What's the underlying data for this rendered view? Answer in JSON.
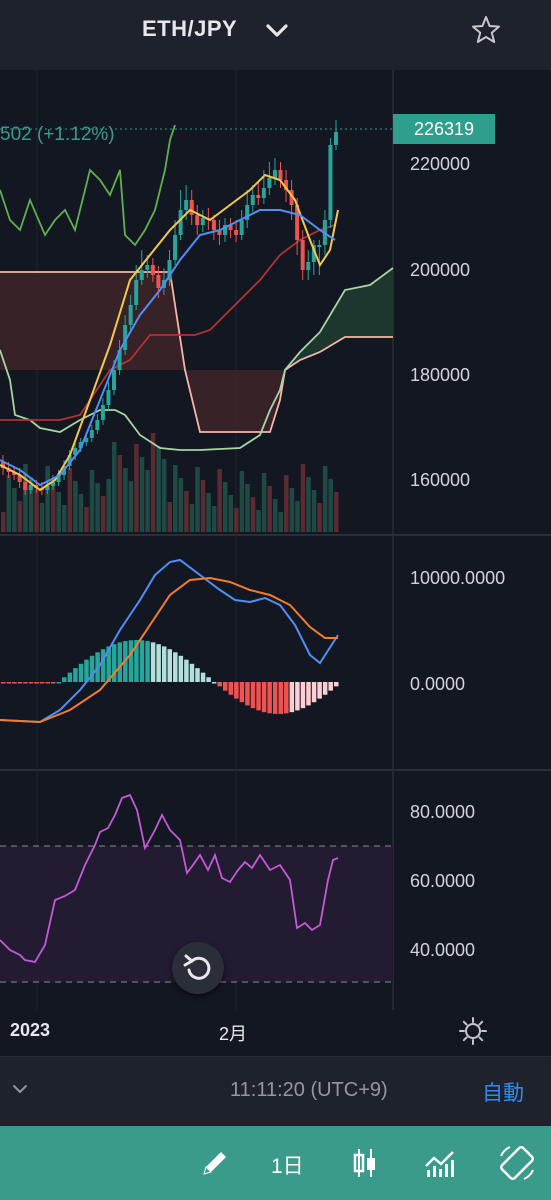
{
  "header": {
    "title": "ETH/JPY",
    "dropdown_icon": "chevron-down-icon",
    "favorite_icon": "star-icon"
  },
  "price": {
    "last": "226319",
    "change_partial": "502 (+1.12%)",
    "axis_ticks": [
      "220000",
      "200000",
      "180000",
      "160000"
    ],
    "badge_color": "#2f9e8c"
  },
  "macd": {
    "axis_ticks": [
      "10000.0000",
      "0.0000"
    ],
    "macd_color": "#4f8ff7",
    "signal_color": "#f57c2b"
  },
  "rsi": {
    "axis_ticks": [
      "80.0000",
      "60.0000",
      "40.0000"
    ],
    "line_color": "#c45bd6"
  },
  "time_axis": {
    "labels": [
      "2023",
      "2月"
    ]
  },
  "status_bar": {
    "time": "11:11:20 (UTC+9)",
    "scale_mode": "自動"
  },
  "toolbar": {
    "timeframe": "1日"
  },
  "colors": {
    "up": "#26a69a",
    "down": "#ef5350",
    "background": "#131722",
    "toolbar": "#3a9b8a"
  }
}
